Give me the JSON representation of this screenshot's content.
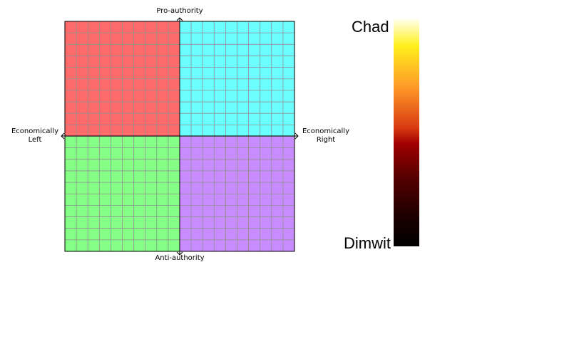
{
  "axes": {
    "top": "Pro-authority",
    "bottom": "Anti-authority",
    "left_line1": "Economically",
    "left_line2": "Left",
    "right_line1": "Economically",
    "right_line2": "Right"
  },
  "quadrants": [
    {
      "id": "authoritarian-left",
      "color": "#ff6b6b"
    },
    {
      "id": "authoritarian-right",
      "color": "#6bffff"
    },
    {
      "id": "libertarian-left",
      "color": "#85ff85"
    },
    {
      "id": "libertarian-right",
      "color": "#c98cff"
    }
  ],
  "grid": {
    "cells_per_side": 20,
    "line_color": "#909090"
  },
  "colorbar": {
    "top_label": "Chad",
    "bottom_label": "Dimwit",
    "colormap": "afmhot"
  }
}
